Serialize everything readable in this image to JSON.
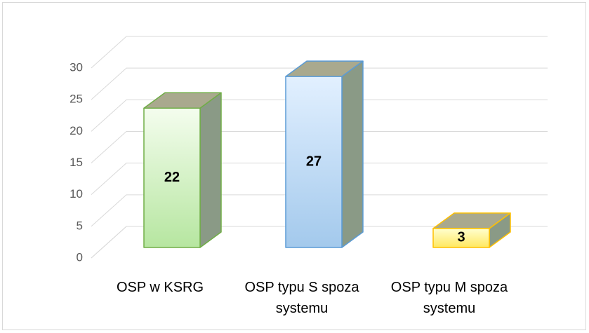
{
  "chart_data": {
    "type": "bar3d",
    "categories": [
      "OSP w KSRG",
      "OSP typu S spoza systemu",
      "OSP typu M spoza systemu"
    ],
    "values": [
      22,
      27,
      3
    ],
    "colors": [
      "#70ad47",
      "#5b9bd5",
      "#ffc000"
    ],
    "ylim": [
      0,
      30
    ],
    "yticks": [
      0,
      5,
      10,
      15,
      20,
      25,
      30
    ],
    "grid": true
  }
}
